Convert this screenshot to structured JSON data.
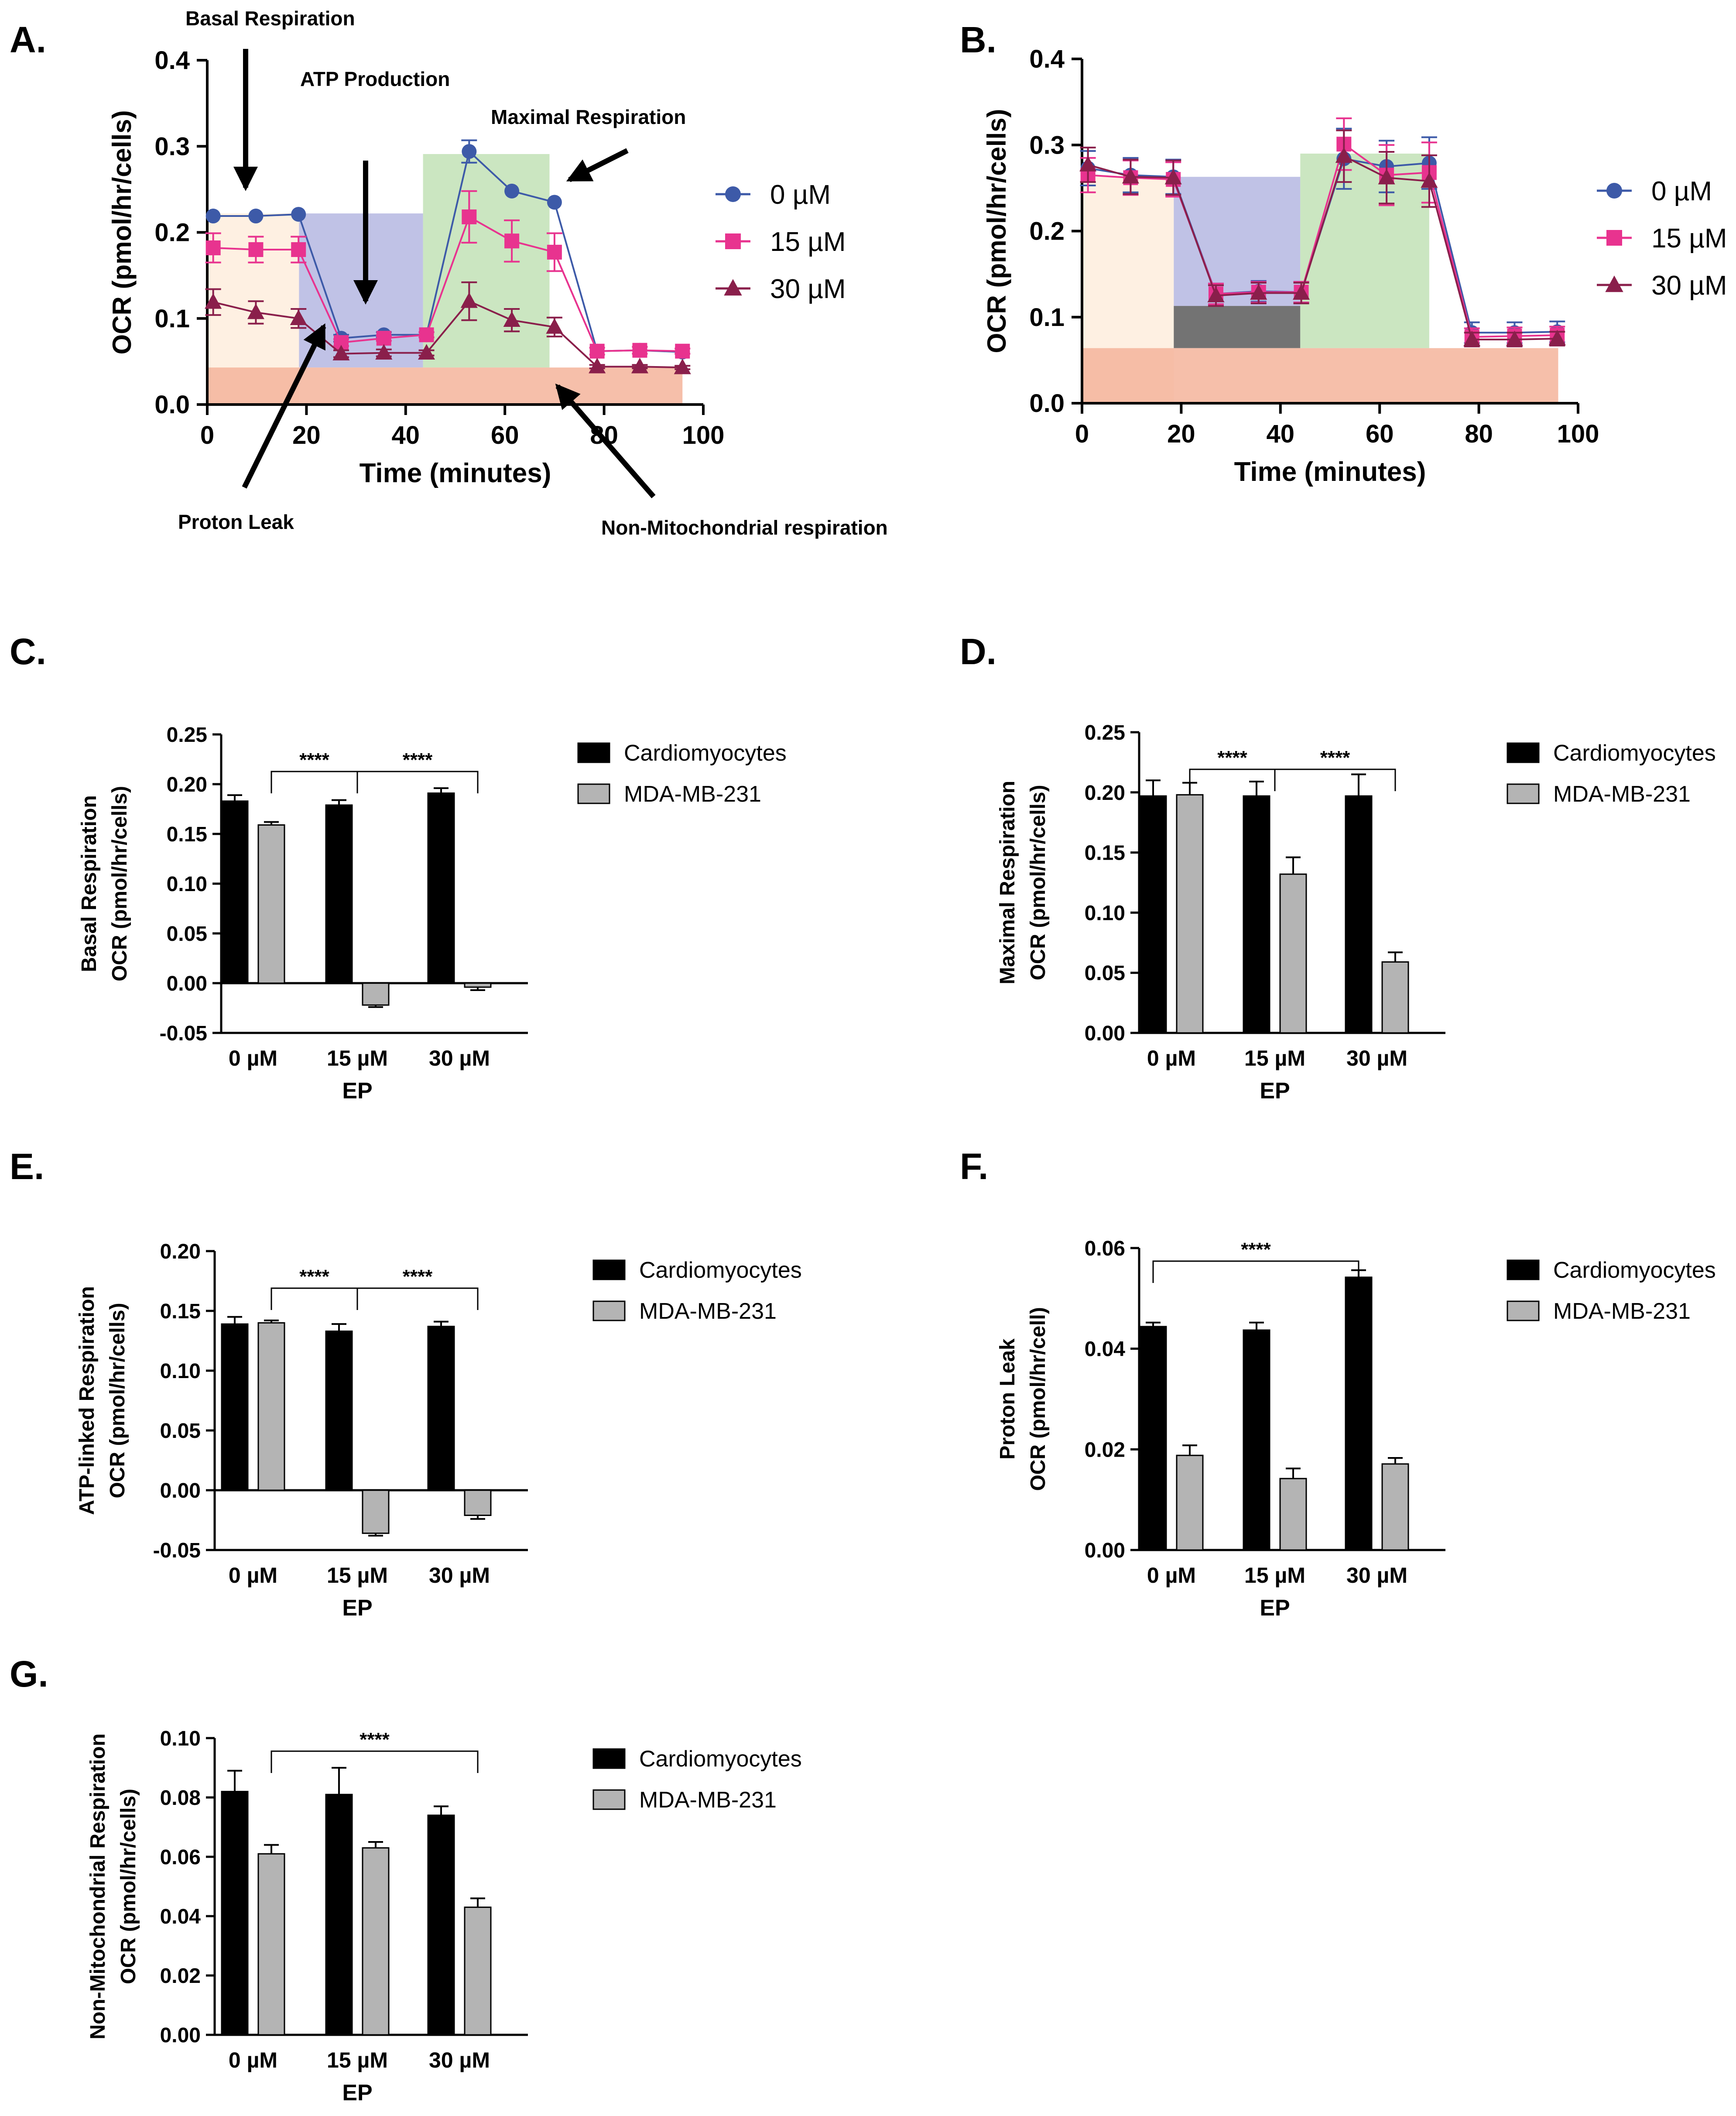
{
  "colors": {
    "series_0uM": "#3d5aa8",
    "series_15uM": "#e8338f",
    "series_30uM": "#8a1f4b",
    "cardiomyocytes": "#000000",
    "mda": "#b4b4b4",
    "region_basal": "#fde9d6",
    "region_atp": "#a5a8db",
    "region_maximal": "#b5dba6",
    "region_nonmito": "#f5b49b"
  },
  "chart_data": [
    {
      "panel": "A.",
      "type": "line",
      "xlabel": "Time (minutes)",
      "ylabel": "OCR (pmol/hr/cells)",
      "xlim": [
        0,
        100
      ],
      "ylim": [
        0,
        0.4
      ],
      "xticks": [
        "0",
        "20",
        "40",
        "60",
        "80",
        "100"
      ],
      "yticks": [
        "0.0",
        "0.1",
        "0.2",
        "0.3",
        "0.4"
      ],
      "legend_position": "right",
      "x": [
        1.2,
        9.8,
        18.4,
        27,
        35.6,
        44.2,
        52.8,
        61.4,
        70,
        78.6,
        87.2,
        95.8
      ],
      "series": [
        {
          "name": "0 µM",
          "marker": "circle",
          "color": "#3d5aa8",
          "values": [
            0.219,
            0.219,
            0.221,
            0.077,
            0.081,
            0.081,
            0.294,
            0.248,
            0.235,
            0.062,
            0.063,
            0.061
          ],
          "errors": [
            0,
            0,
            0,
            0.004,
            0.003,
            0.003,
            0.013,
            0,
            0,
            0,
            0,
            0
          ]
        },
        {
          "name": "15 µM",
          "marker": "square",
          "color": "#e8338f",
          "values": [
            0.182,
            0.18,
            0.18,
            0.072,
            0.077,
            0.081,
            0.218,
            0.19,
            0.177,
            0.062,
            0.063,
            0.062
          ],
          "errors": [
            0.017,
            0.015,
            0.015,
            0.004,
            0.003,
            0.003,
            0.03,
            0.024,
            0.022,
            0.004,
            0.004,
            0.003
          ]
        },
        {
          "name": "30 µM",
          "marker": "triangle",
          "color": "#8a1f4b",
          "values": [
            0.119,
            0.107,
            0.1,
            0.059,
            0.06,
            0.06,
            0.12,
            0.098,
            0.09,
            0.044,
            0.044,
            0.043
          ],
          "errors": [
            0.015,
            0.013,
            0.011,
            0.004,
            0.004,
            0.003,
            0.022,
            0.013,
            0.011,
            0.002,
            0.002,
            0.002
          ]
        }
      ],
      "regions": [
        {
          "name": "basal",
          "x": [
            0,
            18.5
          ],
          "y": [
            0,
            0.222
          ]
        },
        {
          "name": "atp",
          "x": [
            18.5,
            43.5
          ],
          "y": [
            0.043,
            0.222
          ]
        },
        {
          "name": "maximal",
          "x": [
            43.5,
            69
          ],
          "y": [
            0.043,
            0.291
          ]
        },
        {
          "name": "nonmito",
          "x": [
            0,
            95.8
          ],
          "y": [
            0,
            0.043
          ]
        }
      ],
      "annotations": {
        "basal": "Basal Respiration",
        "atp": "ATP Production",
        "maximal": "Maximal Respiration",
        "proton": "Proton Leak",
        "nonmito": "Non-Mitochondrial respiration"
      }
    },
    {
      "panel": "B.",
      "type": "line",
      "xlabel": "Time (minutes)",
      "ylabel": "OCR (pmol/hr/cells)",
      "xlim": [
        0,
        100
      ],
      "ylim": [
        0,
        0.4
      ],
      "xticks": [
        "0",
        "20",
        "40",
        "60",
        "80",
        "100"
      ],
      "yticks": [
        "0.0",
        "0.1",
        "0.2",
        "0.3",
        "0.4"
      ],
      "legend_position": "right",
      "x": [
        1.2,
        9.8,
        18.4,
        27,
        35.6,
        44.2,
        52.8,
        61.4,
        70,
        78.6,
        87.2,
        95.8
      ],
      "series": [
        {
          "name": "0 µM",
          "marker": "circle",
          "color": "#3d5aa8",
          "values": [
            0.273,
            0.265,
            0.263,
            0.127,
            0.13,
            0.129,
            0.284,
            0.275,
            0.279,
            0.082,
            0.082,
            0.083
          ],
          "errors": [
            0.02,
            0.02,
            0.02,
            0.012,
            0.012,
            0.012,
            0.035,
            0.03,
            0.03,
            0.012,
            0.012,
            0.012
          ]
        },
        {
          "name": "15 µM",
          "marker": "square",
          "color": "#e8338f",
          "values": [
            0.265,
            0.262,
            0.26,
            0.127,
            0.129,
            0.129,
            0.301,
            0.265,
            0.268,
            0.077,
            0.078,
            0.079
          ],
          "errors": [
            0.02,
            0.02,
            0.02,
            0.012,
            0.012,
            0.012,
            0.03,
            0.035,
            0.035,
            0.01,
            0.01,
            0.01
          ]
        },
        {
          "name": "30 µM",
          "marker": "triangle",
          "color": "#8a1f4b",
          "values": [
            0.277,
            0.263,
            0.262,
            0.125,
            0.128,
            0.128,
            0.287,
            0.262,
            0.258,
            0.074,
            0.074,
            0.075
          ],
          "errors": [
            0.02,
            0.02,
            0.02,
            0.012,
            0.012,
            0.012,
            0.03,
            0.03,
            0.03,
            0.008,
            0.008,
            0.008
          ]
        }
      ],
      "regions": [
        {
          "name": "basal",
          "x": [
            0,
            18.5
          ],
          "y": [
            0,
            0.263
          ]
        },
        {
          "name": "atp",
          "x": [
            18.5,
            44
          ],
          "y": [
            0.113,
            0.263
          ]
        },
        {
          "name": "proton",
          "x": [
            18.5,
            44
          ],
          "y": [
            0.064,
            0.113
          ]
        },
        {
          "name": "maximal",
          "x": [
            44,
            70
          ],
          "y": [
            0.064,
            0.29
          ]
        },
        {
          "name": "nonmito",
          "x": [
            0,
            96
          ],
          "y": [
            0,
            0.064
          ]
        }
      ]
    },
    {
      "panel": "C.",
      "type": "bar",
      "ylabel": [
        "Basal Respiration",
        "OCR (pmol/hr/cells)"
      ],
      "xlabel": "EP",
      "categories": [
        "0 µM",
        "15 µM",
        "30 µM"
      ],
      "ylim": [
        -0.05,
        0.25
      ],
      "yticks": [
        "-0.05",
        "0.00",
        "0.05",
        "0.10",
        "0.15",
        "0.20",
        "0.25"
      ],
      "legend_position": "right",
      "series": [
        {
          "name": "Cardiomyocytes",
          "values": [
            0.183,
            0.179,
            0.191
          ],
          "errors": [
            0.006,
            0.005,
            0.005
          ]
        },
        {
          "name": "MDA-MB-231",
          "values": [
            0.159,
            -0.022,
            -0.004
          ],
          "errors": [
            0.003,
            0.002,
            0.003
          ]
        }
      ],
      "significance": [
        {
          "from": 0,
          "to": 1,
          "label": "****"
        },
        {
          "from": 1,
          "to": 2,
          "label": "****"
        }
      ]
    },
    {
      "panel": "D.",
      "type": "bar",
      "ylabel": [
        "Maximal Respiration",
        "OCR (pmol/hr/cells)"
      ],
      "xlabel": "EP",
      "categories": [
        "0 µM",
        "15 µM",
        "30 µM"
      ],
      "ylim": [
        0,
        0.25
      ],
      "yticks": [
        "0.00",
        "0.05",
        "0.10",
        "0.15",
        "0.20",
        "0.25"
      ],
      "legend_position": "right",
      "series": [
        {
          "name": "Cardiomyocytes",
          "values": [
            0.197,
            0.197,
            0.197
          ],
          "errors": [
            0.013,
            0.012,
            0.018
          ]
        },
        {
          "name": "MDA-MB-231",
          "values": [
            0.198,
            0.132,
            0.059
          ],
          "errors": [
            0.01,
            0.014,
            0.008
          ]
        }
      ],
      "significance": [
        {
          "from": 0,
          "to": 1,
          "label": "****"
        },
        {
          "from": 1,
          "to": 2,
          "label": "****"
        }
      ]
    },
    {
      "panel": "E.",
      "type": "bar",
      "ylabel": [
        "ATP-linked Respiration",
        "OCR (pmol/hr/cells)"
      ],
      "xlabel": "EP",
      "categories": [
        "0 µM",
        "15 µM",
        "30 µM"
      ],
      "ylim": [
        -0.05,
        0.2
      ],
      "yticks": [
        "-0.05",
        "0.00",
        "0.05",
        "0.10",
        "0.15",
        "0.20"
      ],
      "legend_position": "right",
      "series": [
        {
          "name": "Cardiomyocytes",
          "values": [
            0.139,
            0.133,
            0.137
          ],
          "errors": [
            0.006,
            0.006,
            0.004
          ]
        },
        {
          "name": "MDA-MB-231",
          "values": [
            0.14,
            -0.036,
            -0.021
          ],
          "errors": [
            0.002,
            0.002,
            0.003
          ]
        }
      ],
      "significance": [
        {
          "from": 0,
          "to": 1,
          "label": "****"
        },
        {
          "from": 1,
          "to": 2,
          "label": "****"
        }
      ]
    },
    {
      "panel": "F.",
      "type": "bar",
      "ylabel": [
        "Proton Leak",
        "OCR (pmol/hr/cell)"
      ],
      "xlabel": "EP",
      "categories": [
        "0 µM",
        "15 µM",
        "30 µM"
      ],
      "ylim": [
        0,
        0.06
      ],
      "yticks": [
        "0.00",
        "0.02",
        "0.04",
        "0.06"
      ],
      "legend_position": "right",
      "series": [
        {
          "name": "Cardiomyocytes",
          "values": [
            0.0444,
            0.0437,
            0.0542
          ],
          "errors": [
            0.0008,
            0.0015,
            0.0014
          ]
        },
        {
          "name": "MDA-MB-231",
          "values": [
            0.0188,
            0.0142,
            0.0171
          ],
          "errors": [
            0.002,
            0.002,
            0.0012
          ]
        }
      ],
      "significance": [
        {
          "from": 0,
          "to": 2,
          "label": "****",
          "group": "cardio"
        }
      ]
    },
    {
      "panel": "G.",
      "type": "bar",
      "ylabel": [
        "Non-Mitochondrial  Respiration",
        "OCR (pmol/hr/cells)"
      ],
      "xlabel": "EP",
      "categories": [
        "0 µM",
        "15 µM",
        "30 µM"
      ],
      "ylim": [
        0,
        0.1
      ],
      "yticks": [
        "0.00",
        "0.02",
        "0.04",
        "0.06",
        "0.08",
        "0.10"
      ],
      "legend_position": "right",
      "series": [
        {
          "name": "Cardiomyocytes",
          "values": [
            0.082,
            0.081,
            0.074
          ],
          "errors": [
            0.007,
            0.009,
            0.003
          ]
        },
        {
          "name": "MDA-MB-231",
          "values": [
            0.061,
            0.063,
            0.043
          ],
          "errors": [
            0.003,
            0.002,
            0.003
          ]
        }
      ],
      "significance": [
        {
          "from": 0,
          "to": 2,
          "label": "****"
        }
      ]
    }
  ]
}
